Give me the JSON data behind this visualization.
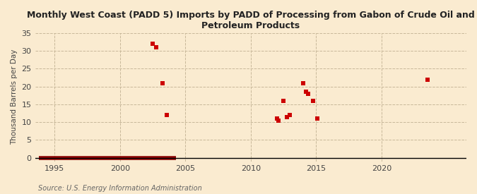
{
  "title": "Monthly West Coast (PADD 5) Imports by PADD of Processing from Gabon of Crude Oil and\nPetroleum Products",
  "ylabel": "Thousand Barrels per Day",
  "source": "Source: U.S. Energy Information Administration",
  "xlim": [
    1993.5,
    2026.5
  ],
  "ylim": [
    -1,
    35
  ],
  "yticks": [
    0,
    5,
    10,
    15,
    20,
    25,
    30,
    35
  ],
  "xticks": [
    1995,
    2000,
    2005,
    2010,
    2015,
    2020
  ],
  "background_color": "#faebd0",
  "plot_bg_color": "#faebd0",
  "marker_color": "#cc0000",
  "zero_line_color": "#8b0000",
  "grid_color": "#c8b89a",
  "tick_color": "#444444",
  "source_color": "#666666",
  "data_points": [
    [
      2002.5,
      32.0
    ],
    [
      2002.75,
      31.0
    ],
    [
      2003.25,
      21.0
    ],
    [
      2003.6,
      12.0
    ],
    [
      2012.0,
      11.0
    ],
    [
      2012.1,
      10.5
    ],
    [
      2012.5,
      16.0
    ],
    [
      2012.75,
      11.5
    ],
    [
      2013.0,
      12.0
    ],
    [
      2014.0,
      21.0
    ],
    [
      2014.25,
      18.5
    ],
    [
      2014.4,
      18.0
    ],
    [
      2014.75,
      16.0
    ],
    [
      2015.1,
      11.0
    ],
    [
      2023.5,
      22.0
    ]
  ],
  "zero_segments": [
    [
      1993.8,
      2004.3
    ]
  ]
}
